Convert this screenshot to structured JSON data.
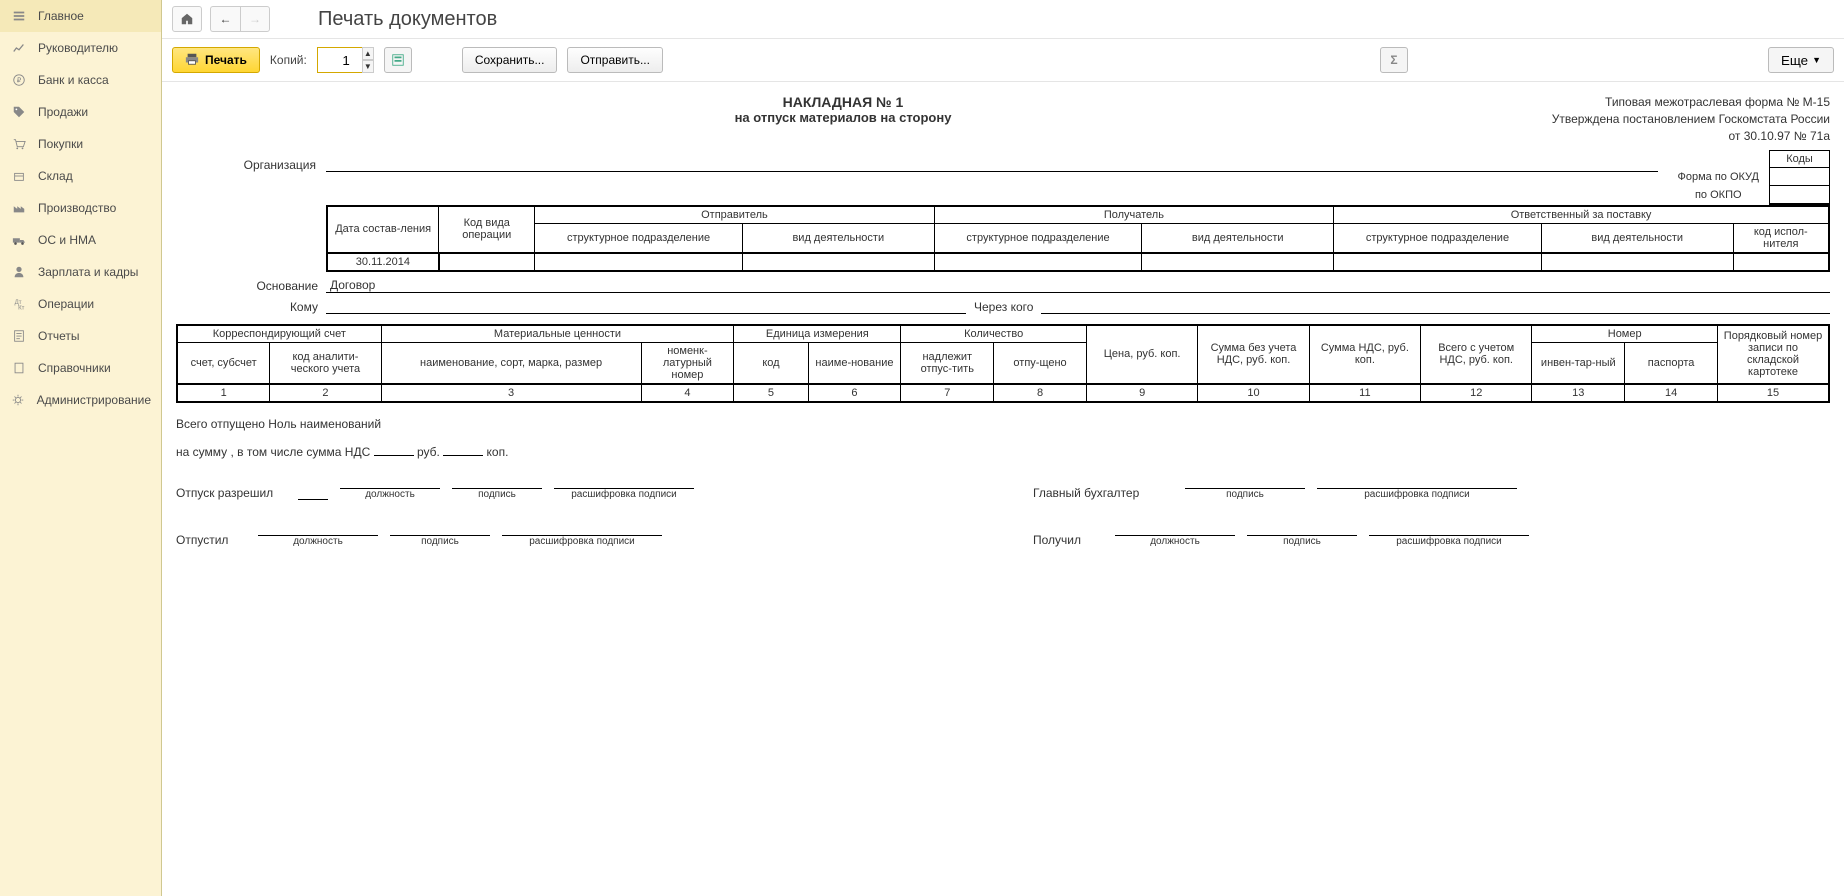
{
  "sidebar": {
    "items": [
      {
        "label": "Главное",
        "icon": "menu"
      },
      {
        "label": "Руководителю",
        "icon": "chart"
      },
      {
        "label": "Банк и касса",
        "icon": "ruble"
      },
      {
        "label": "Продажи",
        "icon": "tag"
      },
      {
        "label": "Покупки",
        "icon": "cart"
      },
      {
        "label": "Склад",
        "icon": "box"
      },
      {
        "label": "Производство",
        "icon": "factory"
      },
      {
        "label": "ОС и НМА",
        "icon": "truck"
      },
      {
        "label": "Зарплата и кадры",
        "icon": "person"
      },
      {
        "label": "Операции",
        "icon": "ops"
      },
      {
        "label": "Отчеты",
        "icon": "report"
      },
      {
        "label": "Справочники",
        "icon": "book"
      },
      {
        "label": "Администрирование",
        "icon": "gear"
      }
    ]
  },
  "header": {
    "title": "Печать документов"
  },
  "toolbar": {
    "print_label": "Печать",
    "copies_label": "Копий:",
    "copies_value": "1",
    "save_label": "Сохранить...",
    "send_label": "Отправить...",
    "sigma_label": "Σ",
    "more_label": "Еще"
  },
  "doc": {
    "meta_line1": "Типовая межотраслевая форма № М-15",
    "meta_line2": "Утверждена постановлением Госкомстата России",
    "meta_line3": "от 30.10.97 № 71а",
    "title": "НАКЛАДНАЯ № 1",
    "subtitle": "на отпуск материалов на сторону",
    "codes_header": "Коды",
    "form_okud_label": "Форма по ОКУД",
    "form_okud_value": "",
    "okpo_label": "по ОКПО",
    "okpo_value": "",
    "org_label": "Организация",
    "basis_label": "Основание",
    "basis_value": "Договор",
    "to_label": "Кому",
    "through_label": "Через кого",
    "table1": {
      "h_date": "Дата состав-ления",
      "h_code": "Код вида операции",
      "h_sender": "Отправитель",
      "h_receiver": "Получатель",
      "h_responsible": "Ответственный за поставку",
      "h_struct": "структурное подразделение",
      "h_activity": "вид деятельности",
      "h_exec": "код испол-нителя",
      "date_value": "30.11.2014"
    },
    "table2": {
      "h_corr": "Корреспондирующий счет",
      "h_account": "счет, субсчет",
      "h_analytic": "код аналити-ческого учета",
      "h_material": "Материальные ценности",
      "h_name": "наименование, сорт, марка, размер",
      "h_nomen": "номенк-латурный номер",
      "h_unit": "Единица измерения",
      "h_code": "код",
      "h_unitname": "наиме-нование",
      "h_qty": "Количество",
      "h_qty_due": "надлежит отпус-тить",
      "h_qty_released": "отпу-щено",
      "h_price": "Цена, руб. коп.",
      "h_sum_novat": "Сумма без учета НДС, руб. коп.",
      "h_vat": "Сумма НДС, руб. коп.",
      "h_total": "Всего с учетом НДС, руб. коп.",
      "h_number": "Номер",
      "h_inv": "инвен-тар-ный",
      "h_passport": "паспорта",
      "h_seq": "Порядковый номер записи по складской картотеке",
      "cols": [
        "1",
        "2",
        "3",
        "4",
        "5",
        "6",
        "7",
        "8",
        "9",
        "10",
        "11",
        "12",
        "13",
        "14",
        "15"
      ]
    },
    "total_line": "Всего отпущено Ноль  наименований",
    "sum_line_prefix": "на сумму , в том числе сумма НДС",
    "rub": "руб.",
    "kop": "коп.",
    "release_allowed": "Отпуск разрешил",
    "released_by": "Отпустил",
    "chief_accountant": "Главный бухгалтер",
    "received_by": "Получил",
    "cap_position": "должность",
    "cap_sign": "подпись",
    "cap_decode": "расшифровка подписи"
  },
  "colors": {
    "sidebar_bg": "#fcf3d4",
    "print_btn": "#ffd633"
  }
}
